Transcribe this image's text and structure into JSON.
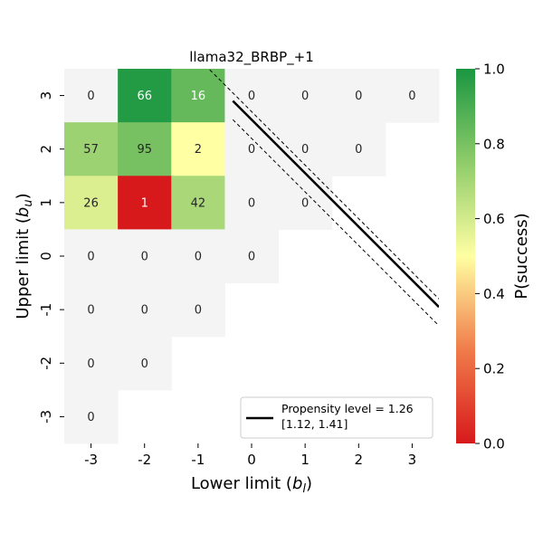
{
  "chart_data": {
    "type": "heatmap",
    "title": "llama32_BRBP_+1",
    "xlabel": "Lower limit ($b_l$)",
    "xlabel_main": "Lower limit (",
    "xlabel_var": "b",
    "xlabel_sub": "l",
    "xlabel_close": ")",
    "ylabel": "Upper limit ($b_u$)",
    "ylabel_main": "Upper limit (",
    "ylabel_var": "b",
    "ylabel_sub": "u",
    "ylabel_close": ")",
    "x_ticks": [
      "-3",
      "-2",
      "-1",
      "0",
      "1",
      "2",
      "3"
    ],
    "y_ticks": [
      "3",
      "2",
      "1",
      "0",
      "-1",
      "-2",
      "-3"
    ],
    "colorbar": {
      "label": "P(success)",
      "range": [
        0.0,
        1.0
      ],
      "ticks": [
        "0.0",
        "0.2",
        "0.4",
        "0.6",
        "0.8",
        "1.0"
      ]
    },
    "cells": [
      {
        "x": -3,
        "y": 3,
        "count": "0",
        "p": null
      },
      {
        "x": -2,
        "y": 3,
        "count": "66",
        "p": 0.98
      },
      {
        "x": -1,
        "y": 3,
        "count": "16",
        "p": 0.84
      },
      {
        "x": 0,
        "y": 3,
        "count": "0",
        "p": null
      },
      {
        "x": 1,
        "y": 3,
        "count": "0",
        "p": null
      },
      {
        "x": 2,
        "y": 3,
        "count": "0",
        "p": null
      },
      {
        "x": 3,
        "y": 3,
        "count": "0",
        "p": null
      },
      {
        "x": -3,
        "y": 2,
        "count": "57",
        "p": 0.72
      },
      {
        "x": -2,
        "y": 2,
        "count": "95",
        "p": 0.8
      },
      {
        "x": -1,
        "y": 2,
        "count": "2",
        "p": 0.5
      },
      {
        "x": 0,
        "y": 2,
        "count": "0",
        "p": null
      },
      {
        "x": 1,
        "y": 2,
        "count": "0",
        "p": null
      },
      {
        "x": 2,
        "y": 2,
        "count": "0",
        "p": null
      },
      {
        "x": -3,
        "y": 1,
        "count": "26",
        "p": 0.58
      },
      {
        "x": -2,
        "y": 1,
        "count": "1",
        "p": 0.0
      },
      {
        "x": -1,
        "y": 1,
        "count": "42",
        "p": 0.69
      },
      {
        "x": 0,
        "y": 1,
        "count": "0",
        "p": null
      },
      {
        "x": 1,
        "y": 1,
        "count": "0",
        "p": null
      },
      {
        "x": -3,
        "y": 0,
        "count": "0",
        "p": null
      },
      {
        "x": -2,
        "y": 0,
        "count": "0",
        "p": null
      },
      {
        "x": -1,
        "y": 0,
        "count": "0",
        "p": null
      },
      {
        "x": 0,
        "y": 0,
        "count": "0",
        "p": null
      },
      {
        "x": -3,
        "y": -1,
        "count": "0",
        "p": null
      },
      {
        "x": -2,
        "y": -1,
        "count": "0",
        "p": null
      },
      {
        "x": -1,
        "y": -1,
        "count": "0",
        "p": null
      },
      {
        "x": -3,
        "y": -2,
        "count": "0",
        "p": null
      },
      {
        "x": -2,
        "y": -2,
        "count": "0",
        "p": null
      },
      {
        "x": -3,
        "y": -3,
        "count": "0",
        "p": null
      }
    ],
    "propensity_line": {
      "value": 1.26,
      "ci": [
        1.12,
        1.41
      ],
      "legend_line1": "Propensity level = 1.26",
      "legend_line2": "[1.12, 1.41]"
    },
    "colors": {
      "empty_cell": "#f4f4f4",
      "line": "#000000"
    }
  }
}
